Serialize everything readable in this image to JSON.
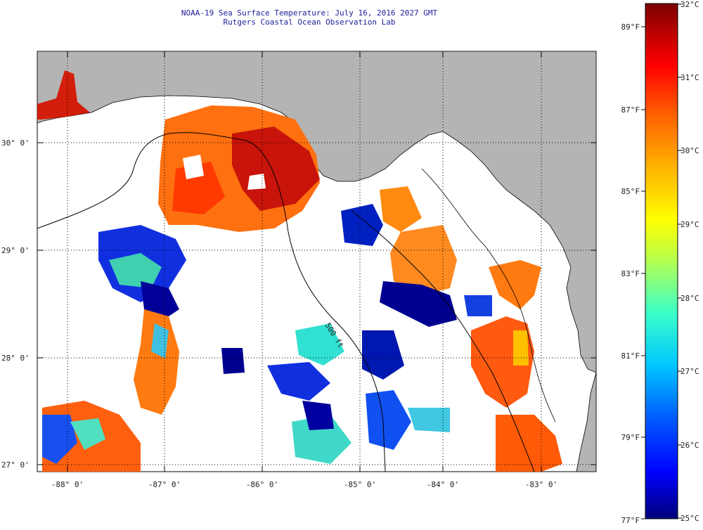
{
  "title": "NOAA-19 Sea Surface Temperature:  July 16, 2016 2027 GMT",
  "subtitle": "Rutgers Coastal Ocean Observation Lab",
  "map": {
    "land_color": "#b4b4b4",
    "no_data_color": "#ffffff",
    "latitude_labels": [
      "30° 0'",
      "29° 0'",
      "28° 0'",
      "27° 0'"
    ],
    "longitude_labels": [
      "-88° 0'",
      "-87° 0'",
      "-86° 0'",
      "-85° 0'",
      "-84° 0'",
      "-83° 0'"
    ],
    "isobath_label": "500 ft"
  },
  "colorbar": {
    "celsius_labels": [
      "32°C",
      "31°C",
      "30°C",
      "29°C",
      "28°C",
      "27°C",
      "26°C",
      "25°C"
    ],
    "fahrenheit_labels": [
      "89°F",
      "87°F",
      "85°F",
      "83°F",
      "81°F",
      "79°F",
      "77°F"
    ],
    "colors": [
      "#00007a",
      "#0000ff",
      "#0060ff",
      "#00c8ff",
      "#3cffc8",
      "#b4ff50",
      "#ffff00",
      "#ffb400",
      "#ff6400",
      "#ff0000",
      "#b40000",
      "#7a0000"
    ]
  }
}
